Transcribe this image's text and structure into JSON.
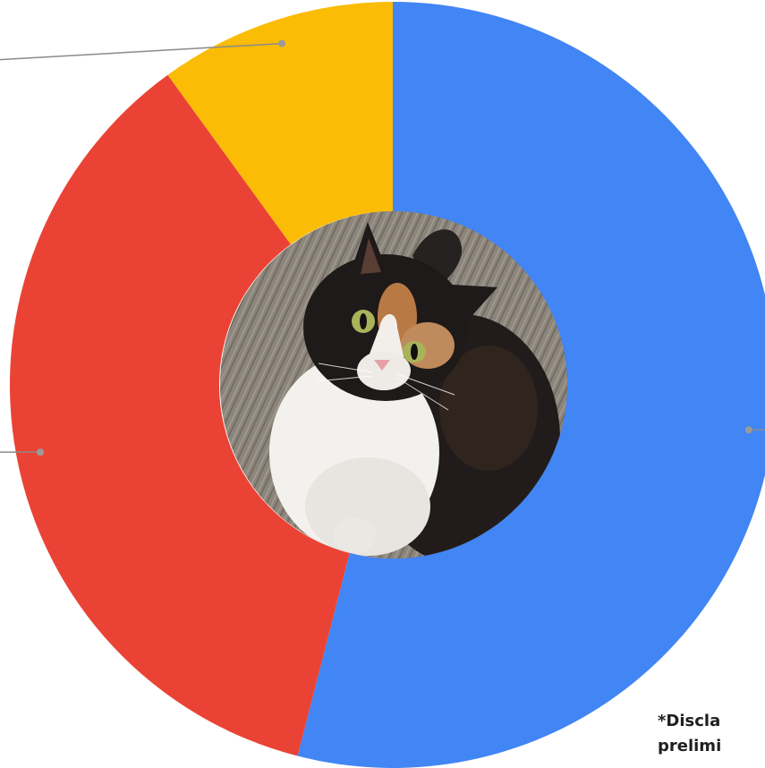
{
  "chart_data": {
    "type": "pie",
    "donut": true,
    "slices": [
      {
        "value": 54,
        "color": "#4285F4"
      },
      {
        "value": 36,
        "color": "#EA4335"
      },
      {
        "value": 10,
        "color": "#FBBC05"
      }
    ],
    "center_image": "calico-cat-photo"
  },
  "footnote": {
    "line1": "*Discla",
    "line2": "prelimi"
  }
}
